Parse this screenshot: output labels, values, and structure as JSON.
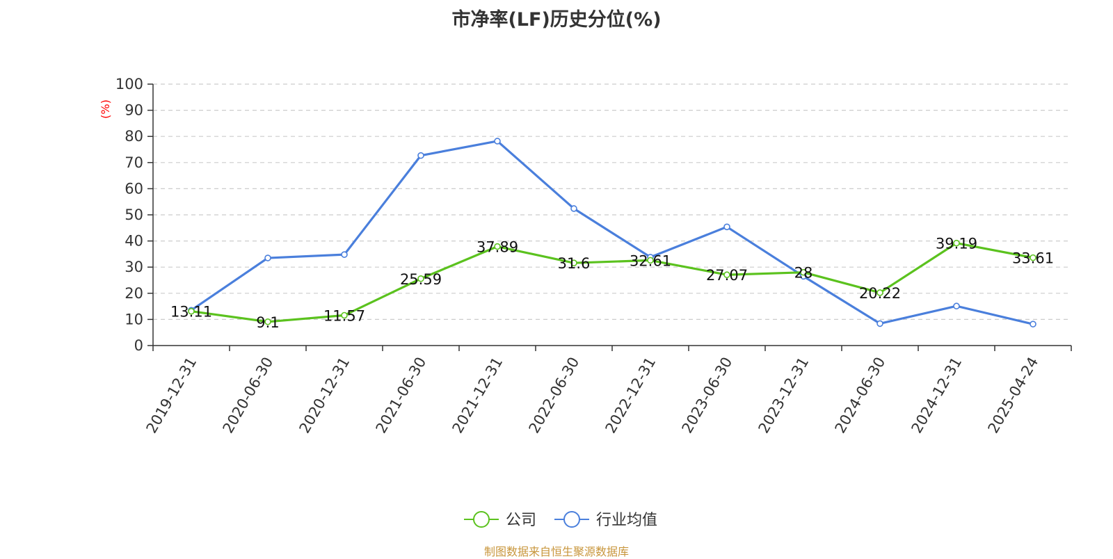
{
  "chart_data": {
    "type": "line",
    "title": "市净率(LF)历史分位(%)",
    "ylabel": "(%)",
    "xlabel": "",
    "ylim": [
      0,
      100
    ],
    "yticks": [
      0,
      10,
      20,
      30,
      40,
      50,
      60,
      70,
      80,
      90,
      100
    ],
    "grid": true,
    "legend_position": "bottom-center",
    "categories": [
      "2019-12-31",
      "2020-06-30",
      "2020-12-31",
      "2021-06-30",
      "2021-12-31",
      "2022-06-30",
      "2022-12-31",
      "2023-06-30",
      "2023-12-31",
      "2024-06-30",
      "2024-12-31",
      "2025-04-24"
    ],
    "series": [
      {
        "name": "公司",
        "color": "#5bc21e",
        "values": [
          13.11,
          9.1,
          11.57,
          25.59,
          37.89,
          31.6,
          32.61,
          27.07,
          28,
          20.22,
          39.19,
          33.61
        ],
        "labels": [
          "13.11",
          "9.1",
          "11.57",
          "25.59",
          "37.89",
          "31.6",
          "32.61",
          "27.07",
          "28",
          "20.22",
          "39.19",
          "33.61"
        ]
      },
      {
        "name": "行业均值",
        "color": "#4a7fdc",
        "values": [
          13.5,
          33.5,
          34.8,
          72.7,
          78.2,
          52.4,
          33.8,
          45.4,
          26.5,
          8.4,
          15.1,
          8.2
        ]
      }
    ]
  },
  "footer": {
    "source": "制图数据来自恒生聚源数据库"
  }
}
